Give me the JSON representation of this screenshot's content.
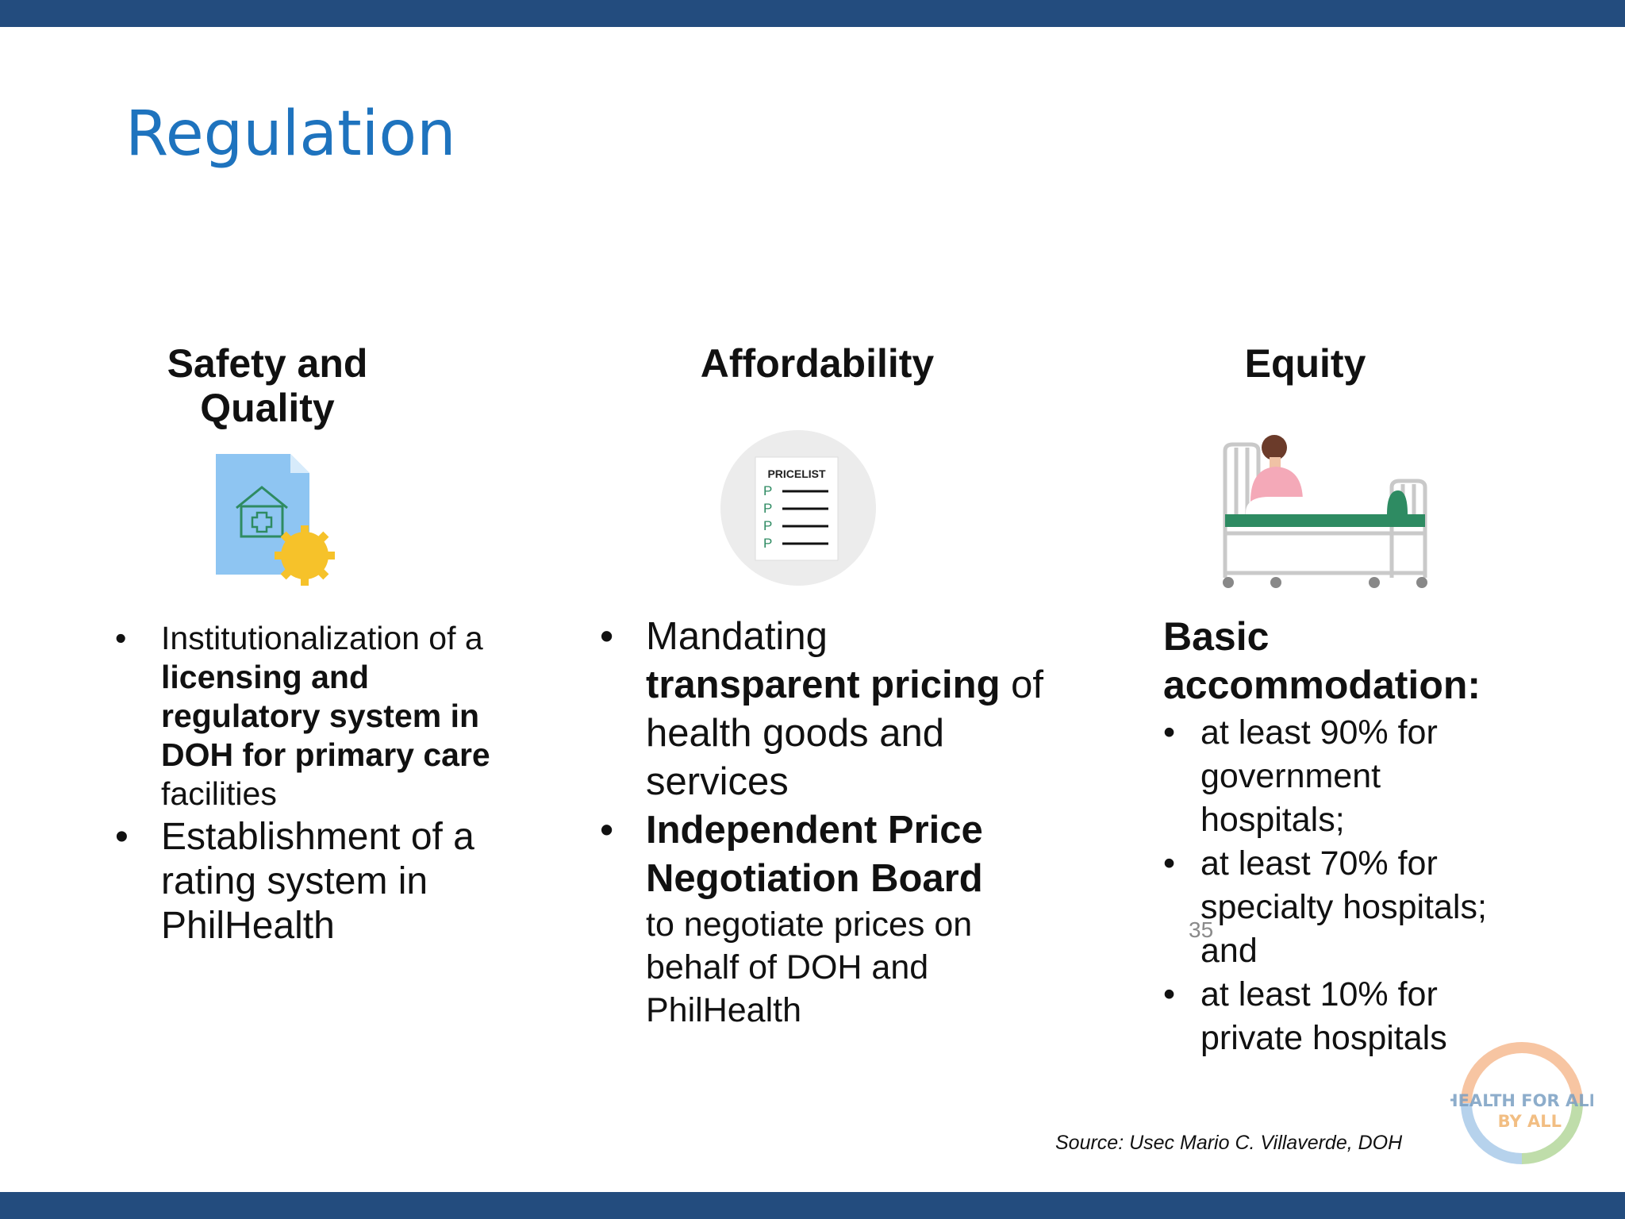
{
  "title": "Regulation",
  "columns": {
    "safety": {
      "heading_line1": "Safety and",
      "heading_line2": "Quality",
      "icon": "facility-license-icon",
      "bullet1": {
        "t1": "Institutionalization of a ",
        "t2": "licensing and regulatory system in DOH for primary care",
        "t3": " facilities"
      },
      "bullet2": "Establishment of a rating system in PhilHealth"
    },
    "affordability": {
      "heading": "Affordability",
      "icon": "pricelist-icon",
      "pricelist_label": "PRICELIST",
      "peso_sign": "P",
      "bullet1": {
        "t1": "Mandating ",
        "t2": "transparent pricing",
        "t3": " of health goods and services"
      },
      "bullet2": {
        "t1": "Independent Price Negotiation Board",
        "t2": "to negotiate prices on behalf of DOH and PhilHealth"
      }
    },
    "equity": {
      "heading": "Equity",
      "icon": "hospital-bed-icon",
      "basic_label": "Basic accommodation:",
      "bullets": [
        "at least 90% for government hospitals;",
        "at least 70% for specialty hospitals; and",
        "at least 10% for private hospitals"
      ]
    }
  },
  "bullet_char": "•",
  "page_number": "35",
  "source": "Source: Usec Mario C. Villaverde, DOH",
  "logo_text_line1": "HEALTH FOR ALL",
  "logo_text_line2": "BY ALL",
  "colors": {
    "bar": "#234c7e",
    "title": "#1e73be",
    "green": "#2e8b62"
  }
}
